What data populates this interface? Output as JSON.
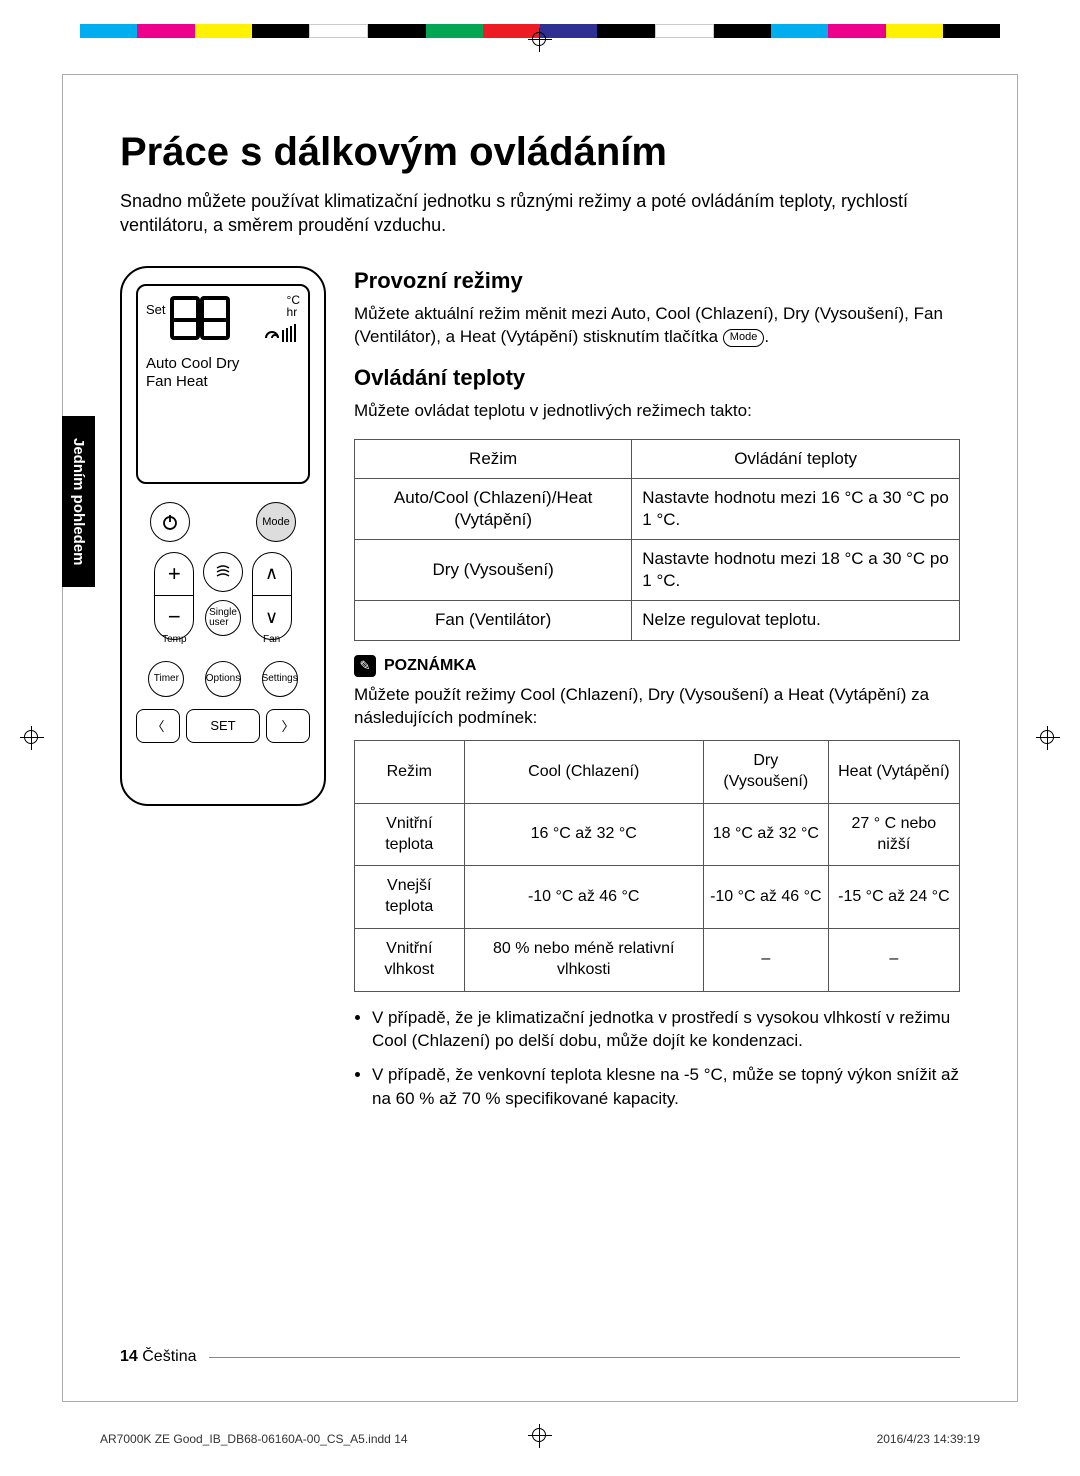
{
  "colorbar": [
    "#00aeef",
    "#ec008c",
    "#fff200",
    "#000000",
    "#ffffff",
    "#000000",
    "#00a651",
    "#ed1c24",
    "#2e3192",
    "#000000",
    "#ffffff",
    "#000000",
    "#00aeef",
    "#ec008c",
    "#fff200",
    "#000000"
  ],
  "title": "Práce s dálkovým ovládáním",
  "intro": "Snadno můžete používat klimatizační jednotku s různými režimy a poté ovládáním teploty, rychlostí ventilátoru, a směrem proudění vzduchu.",
  "sideTab": "Jedním pohledem",
  "remote": {
    "set": "Set",
    "units": "°C\nhr",
    "modesLine1": "Auto Cool Dry",
    "modesLine2": "Fan   Heat",
    "modeBtn": "Mode",
    "tempLabel": "Temp",
    "fanLabel": "Fan",
    "singleUser": "Single user",
    "timer": "Timer",
    "options": "Options",
    "settings": "Settings",
    "setBtn": "SET"
  },
  "sec1": {
    "heading": "Provozní režimy",
    "text": "Můžete aktuální režim měnit mezi Auto, Cool (Chlazení), Dry (Vysoušení), Fan (Ventilátor), a Heat (Vytápění) stisknutím tlačítka ",
    "modeInline": "Mode",
    "textEnd": "."
  },
  "sec2": {
    "heading": "Ovládání teploty",
    "text": "Můžete ovládat teplotu v jednotlivých režimech takto:",
    "table": {
      "headers": [
        "Režim",
        "Ovládání teploty"
      ],
      "rows": [
        [
          "Auto/Cool (Chlazení)/Heat (Vytápění)",
          "Nastavte hodnotu mezi 16 °C a 30 °C po 1 °C."
        ],
        [
          "Dry (Vysoušení)",
          "Nastavte hodnotu mezi 18 °C a 30 °C po 1 °C."
        ],
        [
          "Fan (Ventilátor)",
          "Nelze regulovat teplotu."
        ]
      ]
    }
  },
  "note": {
    "label": "POZNÁMKA",
    "text": "Můžete použít režimy Cool (Chlazení), Dry (Vysoušení) a Heat (Vytápění) za následujících podmínek:",
    "table": {
      "headers": [
        "Režim",
        "Cool (Chlazení)",
        "Dry (Vysoušení)",
        "Heat (Vytápění)"
      ],
      "rows": [
        [
          "Vnitřní teplota",
          "16 °C až 32 °C",
          "18 °C až 32 °C",
          "27 ° C nebo nižší"
        ],
        [
          "Vnejší teplota",
          "-10 °C až 46 °C",
          "-10 °C až 46 °C",
          "-15 °C až 24 °C"
        ],
        [
          "Vnitřní vlhkost",
          "80 % nebo méně relativní vlhkosti",
          "–",
          "–"
        ]
      ]
    },
    "bullets": [
      "V případě, že je klimatizační jednotka v prostředí s vysokou vlhkostí v režimu Cool (Chlazení) po delší dobu, může dojít ke kondenzaci.",
      "V případě, že venkovní teplota klesne na -5 °C, může se topný výkon snížit až na 60 % až 70 % specifikované kapacity."
    ]
  },
  "footer": {
    "page": "14",
    "lang": "Čeština"
  },
  "printFooter": {
    "file": "AR7000K ZE Good_IB_DB68-06160A-00_CS_A5.indd   14",
    "date": "2016/4/23   14:39:19"
  }
}
